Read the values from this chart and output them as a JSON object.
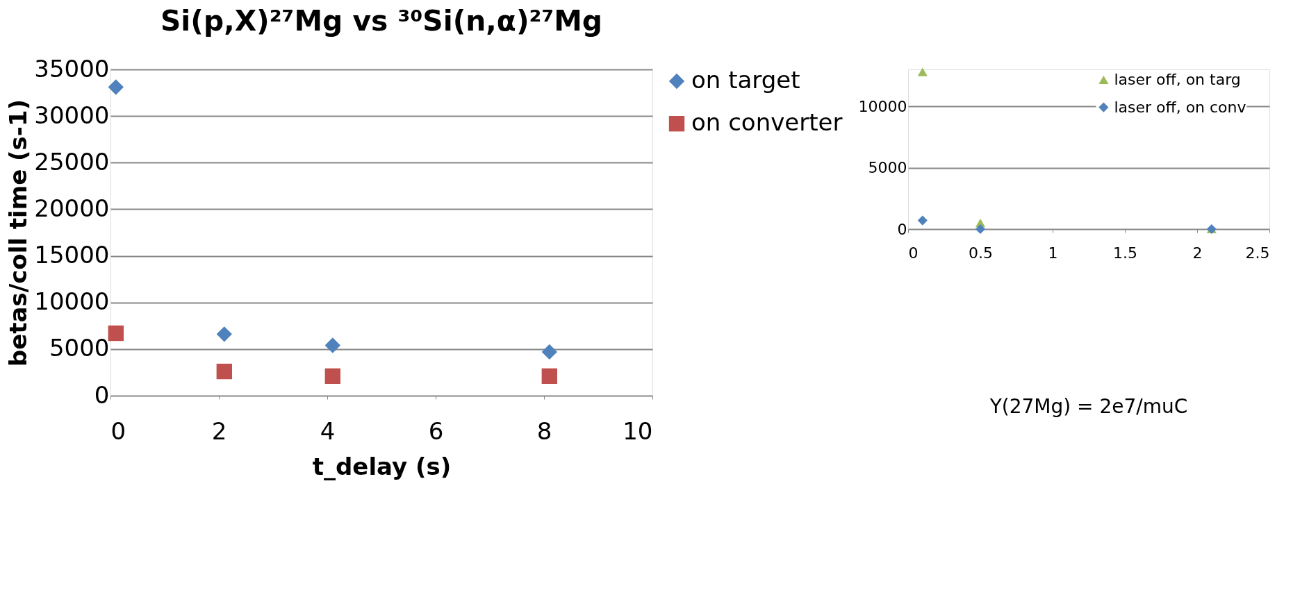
{
  "chart_data": [
    {
      "type": "scatter",
      "title": "Si(p,X)²⁷Mg  vs ³⁰Si(n,α)²⁷Mg",
      "xlabel": "t_delay (s)",
      "ylabel": "betas/coll time (s-1)",
      "x": [
        0.1,
        2.1,
        4.1,
        8.1
      ],
      "series": [
        {
          "name": "on target",
          "color": "#4f81bd",
          "marker": "diamond",
          "values": [
            33100,
            6600,
            5400,
            4700
          ]
        },
        {
          "name": "on converter",
          "color": "#c0504d",
          "marker": "square",
          "values": [
            6700,
            2600,
            2100,
            2100
          ]
        }
      ],
      "xlim": [
        0,
        10
      ],
      "xticks": [
        0,
        2,
        4,
        6,
        8,
        10
      ],
      "ylim": [
        0,
        35000
      ],
      "yticks": [
        0,
        5000,
        10000,
        15000,
        20000,
        25000,
        30000,
        35000
      ],
      "grid": "y",
      "legend": "right",
      "annotations": [
        "Y(27Mg) = 2e7/muC"
      ]
    },
    {
      "type": "scatter",
      "x": [
        0.1,
        0.5,
        2.1
      ],
      "series": [
        {
          "name": "laser off, on targ",
          "color": "#9bbb59",
          "marker": "triangle",
          "values": [
            12800,
            500,
            0
          ]
        },
        {
          "name": "laser off, on conv",
          "color": "#4f81bd",
          "marker": "diamond",
          "values": [
            700,
            0,
            0
          ]
        }
      ],
      "xlim": [
        0,
        2.5
      ],
      "xticks": [
        0,
        0.5,
        1,
        1.5,
        2,
        2.5
      ],
      "ylim": [
        0,
        13000
      ],
      "yticks": [
        0,
        5000,
        10000
      ],
      "grid": "y",
      "legend": "top right"
    }
  ]
}
